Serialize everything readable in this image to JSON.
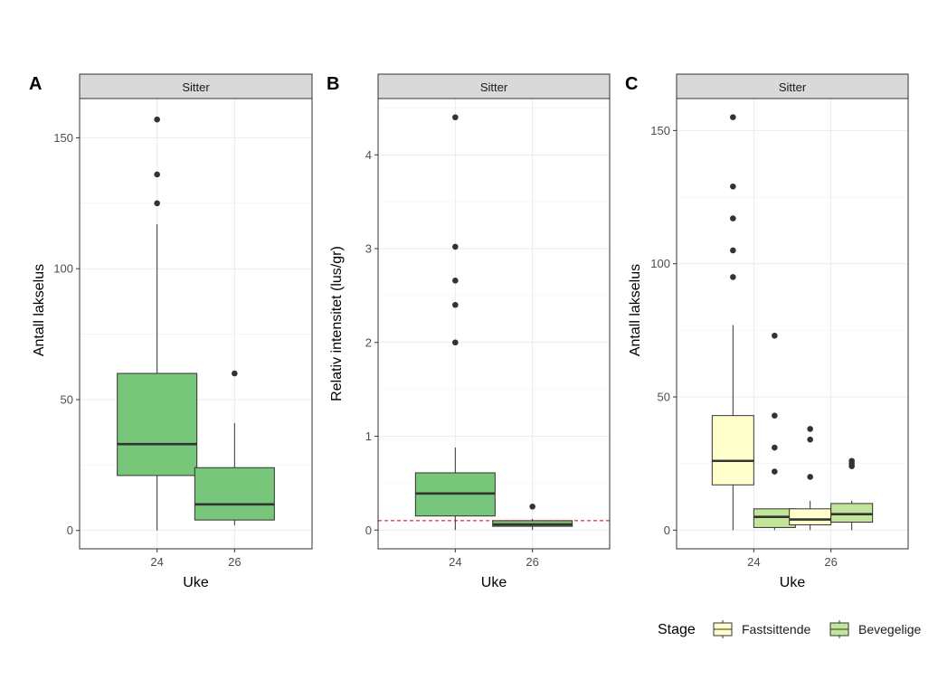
{
  "chart_data": [
    {
      "panel_tag": "A",
      "strip": "Sitter",
      "type": "box",
      "xlabel": "Uke",
      "ylabel": "Antall lakselus",
      "ylim": [
        -7,
        165
      ],
      "yticks": [
        0,
        50,
        100,
        150
      ],
      "categories": [
        "24",
        "26"
      ],
      "boxes": [
        {
          "category": "24",
          "group": "Bevegelige",
          "fill": "#78c679",
          "q1": 21,
          "median": 33,
          "q3": 60,
          "whisker_low": 0,
          "whisker_high": 117,
          "outliers": [
            125,
            136,
            157
          ]
        },
        {
          "category": "26",
          "group": "Bevegelige",
          "fill": "#78c679",
          "q1": 4,
          "median": 10,
          "q3": 24,
          "whisker_low": 2,
          "whisker_high": 41,
          "outliers": [
            60
          ]
        }
      ]
    },
    {
      "panel_tag": "B",
      "strip": "Sitter",
      "type": "box",
      "xlabel": "Uke",
      "ylabel": "Relativ intensitet (lus/gr)",
      "ylim": [
        -0.2,
        4.6
      ],
      "yticks": [
        0,
        1,
        2,
        3,
        4
      ],
      "categories": [
        "24",
        "26"
      ],
      "reference_line": {
        "value": 0.1,
        "color": "#cc0000",
        "style": "dashed"
      },
      "boxes": [
        {
          "category": "24",
          "group": "Bevegelige",
          "fill": "#78c679",
          "q1": 0.15,
          "median": 0.39,
          "q3": 0.61,
          "whisker_low": 0,
          "whisker_high": 0.88,
          "outliers": [
            2.0,
            2.4,
            2.66,
            3.02,
            4.4
          ]
        },
        {
          "category": "26",
          "group": "Bevegelige",
          "fill": "#78c679",
          "q1": 0.04,
          "median": 0.06,
          "q3": 0.1,
          "whisker_low": 0.0,
          "whisker_high": 0.12,
          "outliers": [
            0.25
          ]
        }
      ]
    },
    {
      "panel_tag": "C",
      "strip": "Sitter",
      "type": "box",
      "xlabel": "Uke",
      "ylabel": "Antall lakselus",
      "ylim": [
        -7,
        162
      ],
      "yticks": [
        0,
        50,
        100,
        150
      ],
      "categories": [
        "24",
        "26"
      ],
      "boxes": [
        {
          "category": "24",
          "group": "Fastsittende",
          "fill": "#ffffcc",
          "q1": 17,
          "median": 26,
          "q3": 43,
          "whisker_low": 0,
          "whisker_high": 77,
          "outliers": [
            95,
            105,
            117,
            129,
            155
          ]
        },
        {
          "category": "24",
          "group": "Bevegelige",
          "fill": "#c2e699",
          "q1": 1,
          "median": 5,
          "q3": 8,
          "whisker_low": 0,
          "whisker_high": 8,
          "outliers": [
            22,
            31,
            43,
            73
          ]
        },
        {
          "category": "26",
          "group": "Fastsittende",
          "fill": "#ffffcc",
          "q1": 2,
          "median": 4,
          "q3": 8,
          "whisker_low": 0,
          "whisker_high": 11,
          "outliers": [
            20,
            34,
            38
          ]
        },
        {
          "category": "26",
          "group": "Bevegelige",
          "fill": "#c2e699",
          "q1": 3,
          "median": 6,
          "q3": 10,
          "whisker_low": 0,
          "whisker_high": 11,
          "outliers": [
            24,
            25,
            26
          ]
        }
      ],
      "legend": {
        "title": "Stage",
        "position": "bottom-right",
        "items": [
          {
            "label": "Fastsittende",
            "fill": "#ffffcc"
          },
          {
            "label": "Bevegelige",
            "fill": "#c2e699"
          }
        ]
      }
    }
  ]
}
